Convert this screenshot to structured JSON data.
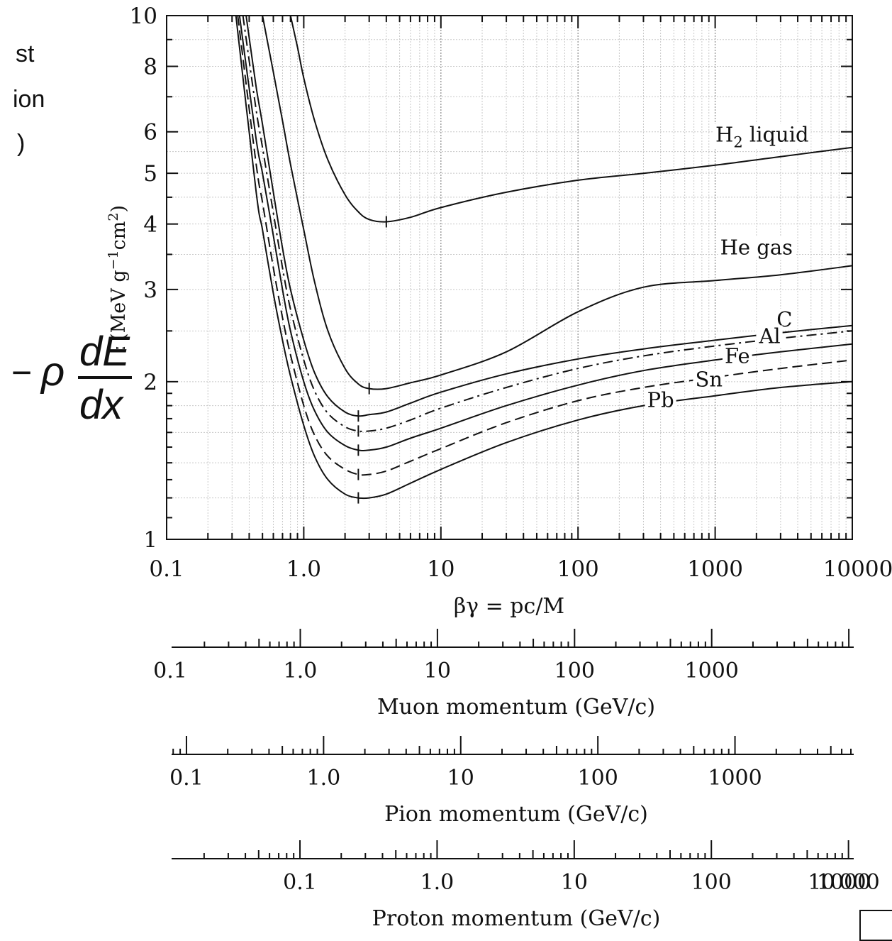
{
  "left_text_fragments": [
    "st",
    "ion",
    ")"
  ],
  "y_axis": {
    "label_prefix": "(MeV g",
    "label_exp1": "−1",
    "label_mid": "cm",
    "label_exp2": "2",
    "label_suffix": ")",
    "clipped_char": "ː",
    "formula": {
      "minus": "−",
      "rho": "ρ",
      "numerator": "dE",
      "denominator": "dx"
    }
  },
  "x_axis_label": "βγ = pc/M",
  "secondary_axes": [
    {
      "label": "Muon momentum (GeV/c)",
      "ticks": [
        "0.1",
        "1.0",
        "10",
        "100",
        "1000"
      ],
      "ratio": 1.06
    },
    {
      "label": "Pion momentum (GeV/c)",
      "ticks": [
        "0.1",
        "1.0",
        "10",
        "100",
        "1000"
      ],
      "ratio": 0.7168
    },
    {
      "label": "Proton momentum (GeV/c)",
      "ticks": [
        "0.1",
        "1.0",
        "10",
        "100",
        "1000",
        "10000"
      ],
      "ratio": 0.1066
    }
  ],
  "corner_box_text": "",
  "chart_data": {
    "type": "line",
    "title": "",
    "xlabel": "βγ = pc/M",
    "ylabel": "−ρ dE/dx (MeV g−1cm2)",
    "x_scale": "log",
    "y_scale": "log",
    "xlim": [
      0.1,
      10000
    ],
    "ylim": [
      1,
      10
    ],
    "x_ticks": [
      "0.1",
      "1.0",
      "10",
      "100",
      "1000",
      "10000"
    ],
    "y_ticks": [
      "1",
      "2",
      "3",
      "4",
      "5",
      "6",
      "8",
      "10"
    ],
    "grid": true,
    "series": [
      {
        "name": "H2 liquid",
        "style": "solid",
        "x": [
          0.8,
          0.9,
          1.0,
          1.2,
          1.5,
          2.0,
          2.5,
          3.0,
          4.0,
          6.0,
          10,
          30,
          100,
          300,
          1000,
          3000,
          10000
        ],
        "y": [
          10.0,
          8.7,
          7.6,
          6.3,
          5.3,
          4.55,
          4.22,
          4.08,
          4.04,
          4.12,
          4.3,
          4.6,
          4.85,
          5.0,
          5.18,
          5.38,
          5.6
        ]
      },
      {
        "name": "He gas",
        "style": "solid",
        "x": [
          0.5,
          0.6,
          0.7,
          0.8,
          1.0,
          1.2,
          1.5,
          2.0,
          2.5,
          3.0,
          4.0,
          6.0,
          10,
          30,
          100,
          300,
          1000,
          3000,
          10000
        ],
        "y": [
          10.0,
          7.8,
          6.3,
          5.2,
          3.9,
          3.1,
          2.5,
          2.12,
          1.98,
          1.94,
          1.94,
          1.99,
          2.06,
          2.28,
          2.72,
          3.03,
          3.12,
          3.2,
          3.33
        ]
      },
      {
        "name": "C",
        "style": "solid",
        "x": [
          0.38,
          0.45,
          0.5,
          0.6,
          0.7,
          0.8,
          1.0,
          1.2,
          1.5,
          2.0,
          2.5,
          3.0,
          4.0,
          6.0,
          10,
          30,
          100,
          300,
          1000,
          3000,
          10000
        ],
        "y": [
          10.0,
          7.3,
          6.2,
          4.6,
          3.6,
          3.0,
          2.4,
          2.08,
          1.87,
          1.75,
          1.72,
          1.73,
          1.75,
          1.82,
          1.91,
          2.07,
          2.21,
          2.31,
          2.4,
          2.48,
          2.56
        ]
      },
      {
        "name": "Al",
        "style": "dashdot",
        "x": [
          0.36,
          0.45,
          0.5,
          0.6,
          0.7,
          0.8,
          1.0,
          1.2,
          1.5,
          2.0,
          2.5,
          3.0,
          4.0,
          6.0,
          10,
          30,
          100,
          300,
          1000,
          3000,
          10000
        ],
        "y": [
          10.0,
          6.6,
          5.6,
          4.2,
          3.3,
          2.75,
          2.2,
          1.92,
          1.74,
          1.64,
          1.61,
          1.61,
          1.63,
          1.69,
          1.78,
          1.95,
          2.12,
          2.24,
          2.34,
          2.42,
          2.5
        ]
      },
      {
        "name": "Fe",
        "style": "solid",
        "x": [
          0.34,
          0.45,
          0.5,
          0.6,
          0.7,
          0.8,
          1.0,
          1.2,
          1.5,
          2.0,
          2.5,
          3.0,
          4.0,
          6.0,
          10,
          30,
          100,
          300,
          1000,
          3000,
          10000
        ],
        "y": [
          10.0,
          5.8,
          5.0,
          3.8,
          3.0,
          2.5,
          2.0,
          1.76,
          1.6,
          1.51,
          1.48,
          1.48,
          1.5,
          1.56,
          1.63,
          1.8,
          1.97,
          2.1,
          2.2,
          2.28,
          2.36
        ]
      },
      {
        "name": "Sn",
        "style": "dashed",
        "x": [
          0.33,
          0.45,
          0.5,
          0.6,
          0.7,
          0.8,
          1.0,
          1.2,
          1.5,
          2.0,
          2.5,
          3.0,
          4.0,
          6.0,
          10,
          30,
          100,
          300,
          1000,
          3000,
          10000
        ],
        "y": [
          10.0,
          5.2,
          4.4,
          3.3,
          2.65,
          2.25,
          1.8,
          1.58,
          1.44,
          1.36,
          1.33,
          1.33,
          1.35,
          1.41,
          1.49,
          1.67,
          1.84,
          1.95,
          2.04,
          2.12,
          2.2
        ]
      },
      {
        "name": "Pb",
        "style": "solid",
        "x": [
          0.32,
          0.45,
          0.5,
          0.6,
          0.7,
          0.8,
          1.0,
          1.2,
          1.5,
          2.0,
          2.5,
          3.0,
          4.0,
          6.0,
          10,
          30,
          100,
          300,
          1000,
          3000,
          10000
        ],
        "y": [
          10.0,
          4.6,
          3.9,
          2.95,
          2.4,
          2.05,
          1.65,
          1.44,
          1.3,
          1.22,
          1.2,
          1.2,
          1.22,
          1.28,
          1.36,
          1.53,
          1.69,
          1.8,
          1.88,
          1.95,
          2.0
        ]
      }
    ],
    "annotations": [
      {
        "text_main": "H",
        "text_sub": "2",
        "text_after": " liquid",
        "series": "H2 liquid",
        "x": 2200,
        "y": 5.75
      },
      {
        "text_main": "He gas",
        "series": "He gas",
        "x": 2000,
        "y": 3.5
      },
      {
        "text_main": "C",
        "series": "C",
        "x": 3200,
        "y": 2.55
      },
      {
        "text_main": "Al",
        "series": "Al",
        "x": 2500,
        "y": 2.37
      },
      {
        "text_main": "Fe",
        "series": "Fe",
        "x": 1450,
        "y": 2.17
      },
      {
        "text_main": "Sn",
        "series": "Sn",
        "x": 900,
        "y": 1.96
      },
      {
        "text_main": "Pb",
        "series": "Pb",
        "x": 400,
        "y": 1.79
      }
    ]
  }
}
